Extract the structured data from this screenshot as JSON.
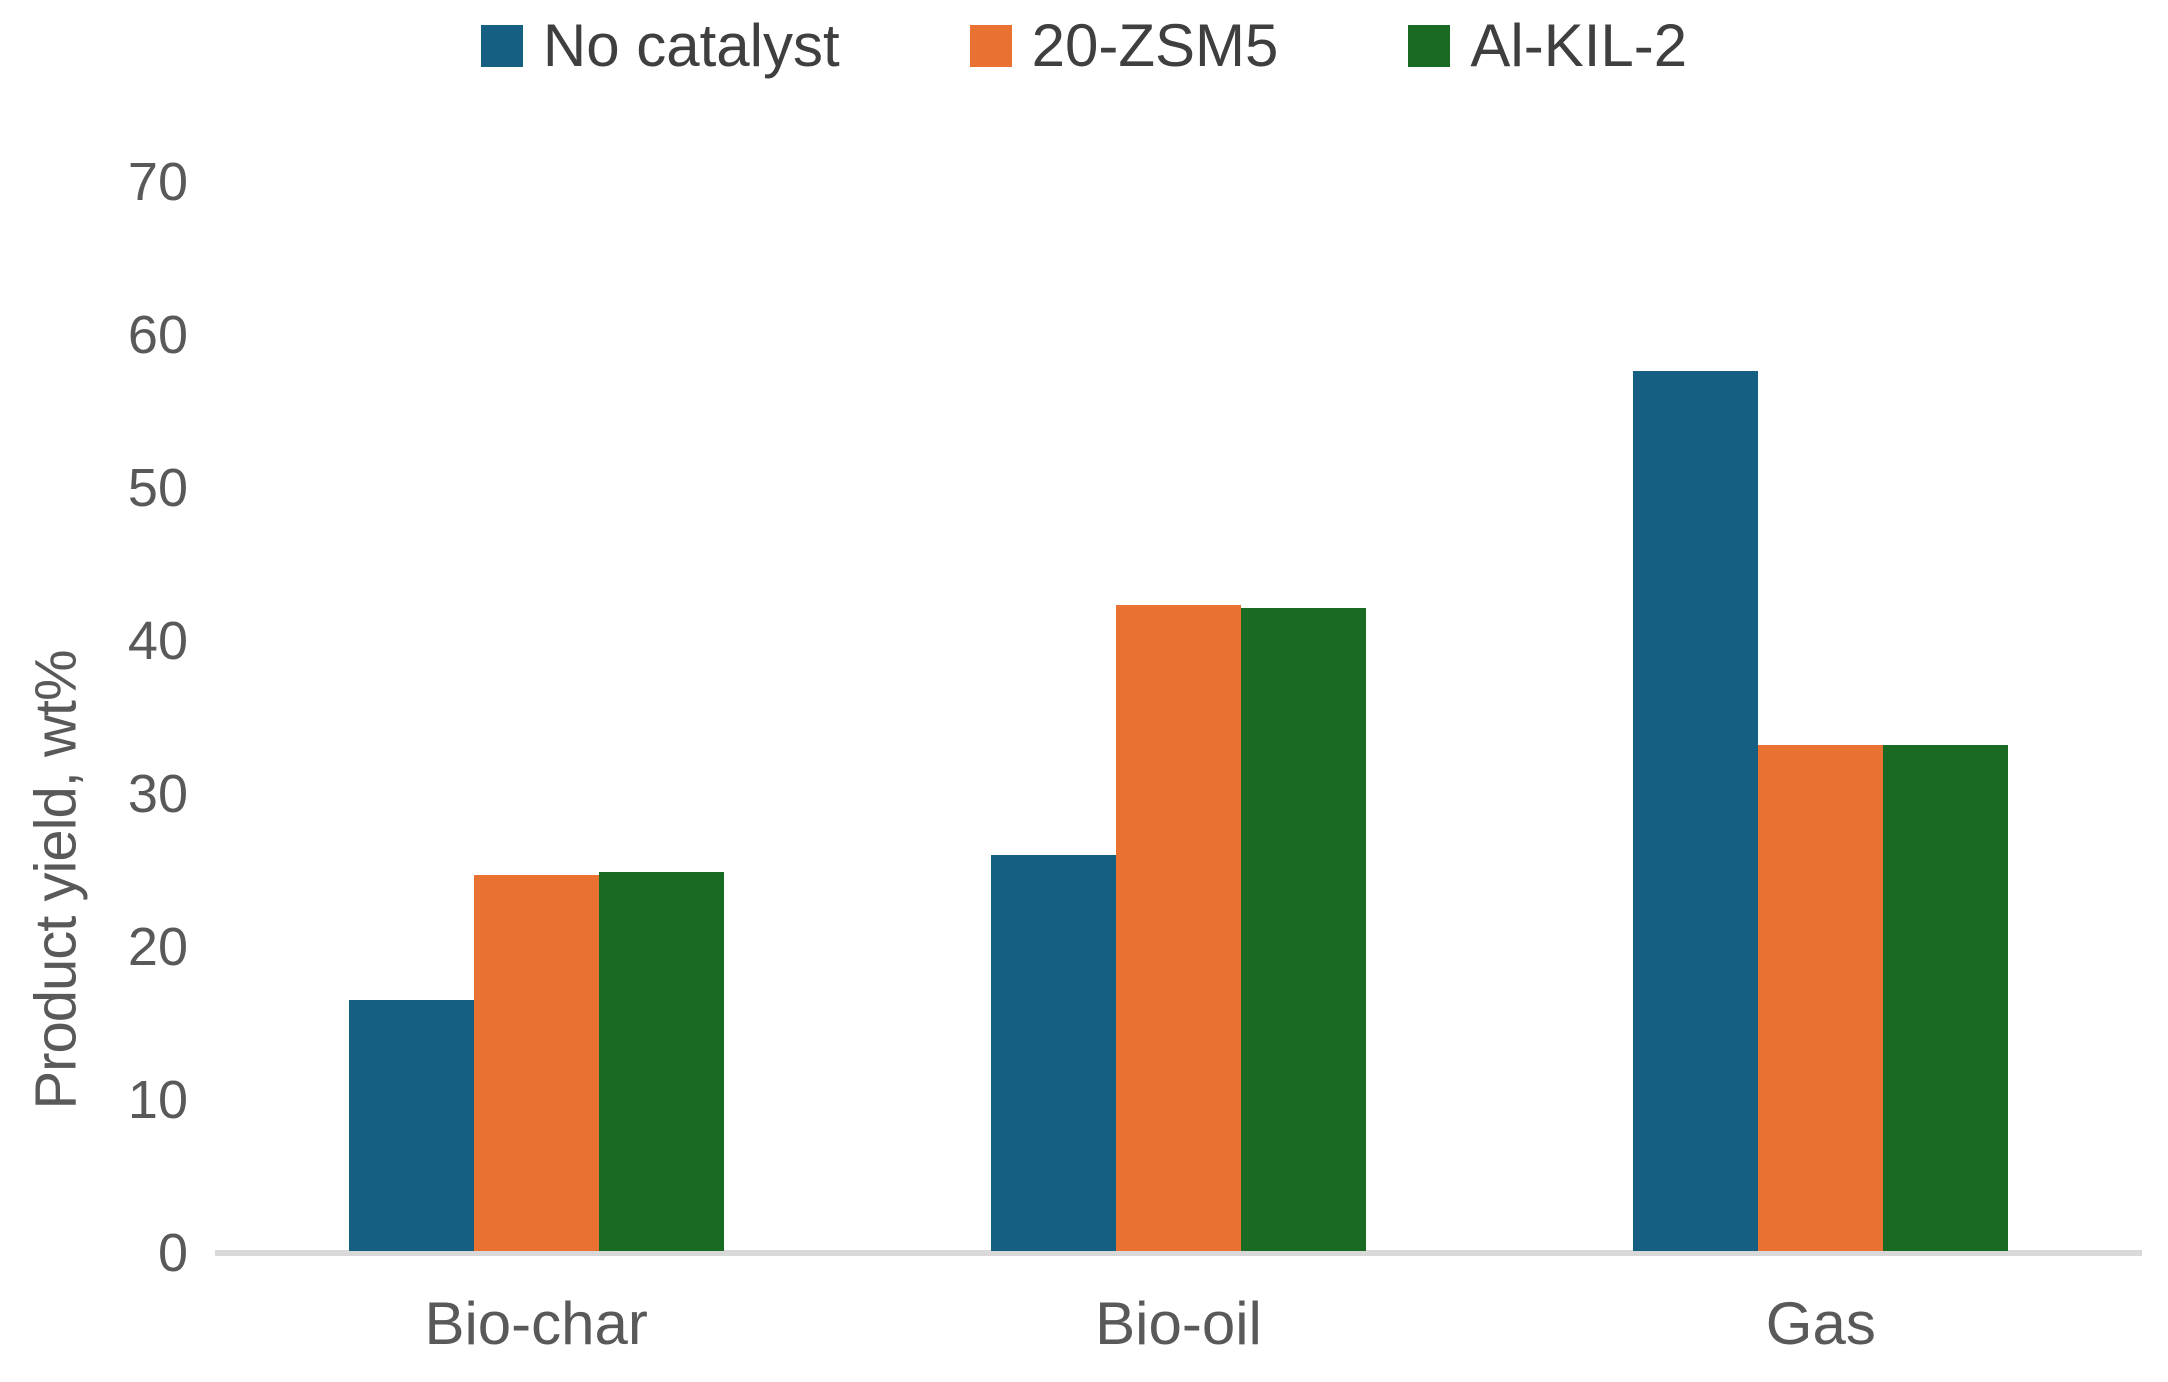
{
  "chart_data": {
    "type": "bar",
    "title": "",
    "categories": [
      "Bio-char",
      "Bio-oil",
      "Gas"
    ],
    "series": [
      {
        "name": "No catalyst",
        "color": "#156082",
        "values": [
          16.4,
          25.9,
          57.5
        ]
      },
      {
        "name": "20-ZSM5",
        "color": "#E97132",
        "values": [
          24.6,
          42.2,
          33.1
        ]
      },
      {
        "name": "Al-KIL-2",
        "color": "#196B24",
        "values": [
          24.8,
          42.0,
          33.1
        ]
      }
    ],
    "xlabel": "",
    "ylabel": "Product yield, wt%",
    "ylim": [
      0,
      70
    ],
    "yticks": [
      0,
      10,
      20,
      30,
      40,
      50,
      60,
      70
    ],
    "legend_position": "top",
    "grid": false
  },
  "ui_colors": {
    "axis_line": "#D9D9D9",
    "tick_text": "#595959",
    "legend_text": "#3f3f3f",
    "background": "#ffffff"
  }
}
